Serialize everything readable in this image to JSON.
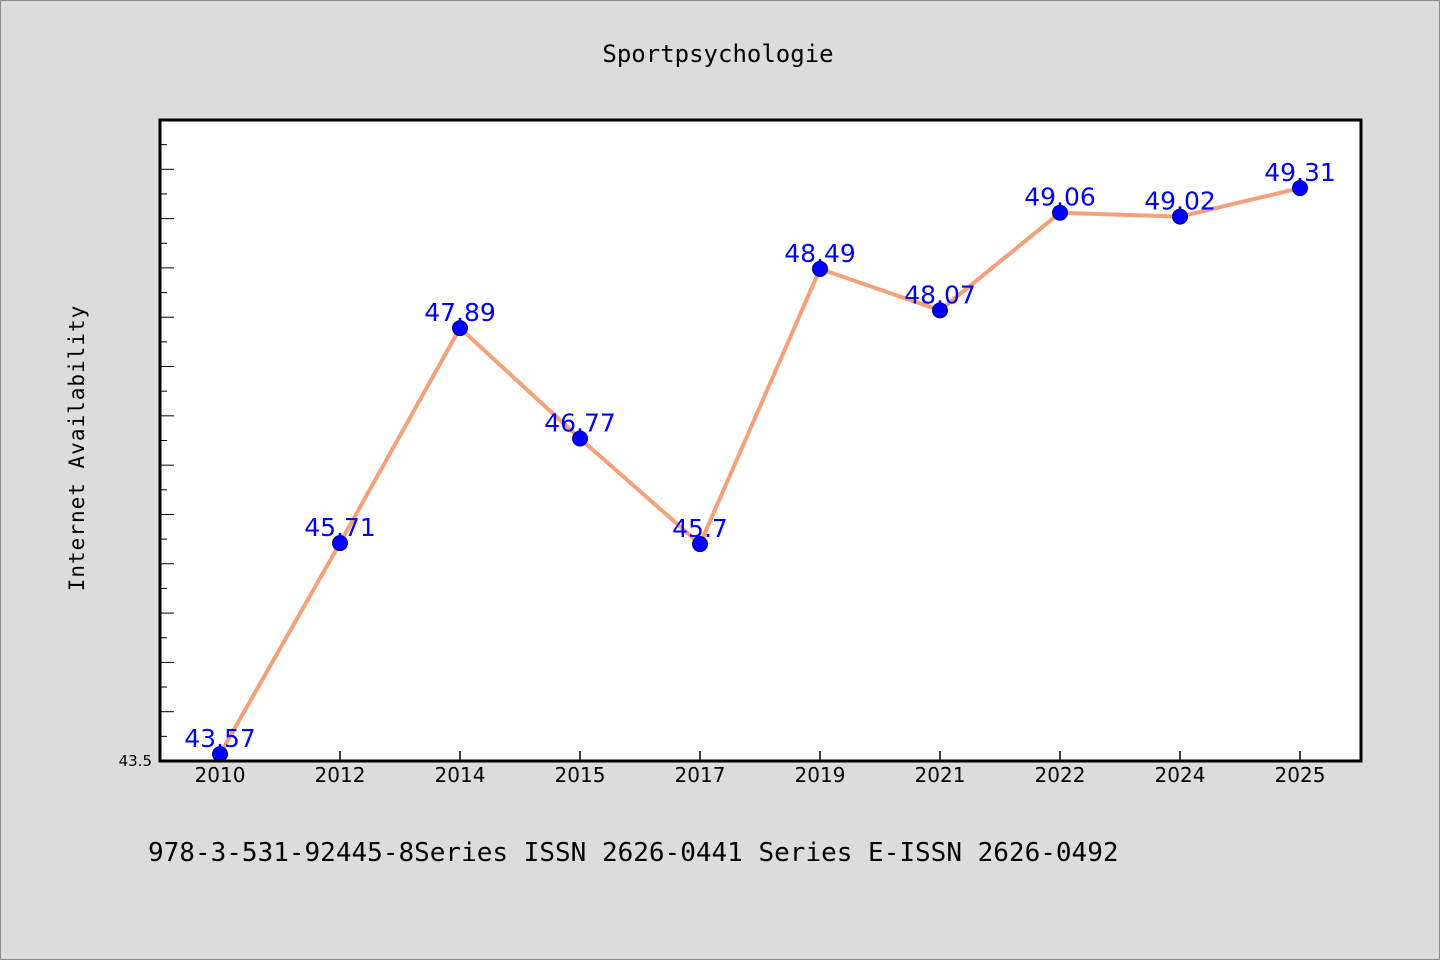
{
  "chart_data": {
    "type": "line",
    "title": "Sportpsychologie",
    "xlabel": "",
    "ylabel": "Internet Availability",
    "categories": [
      "2010",
      "2012",
      "2014",
      "2015",
      "2017",
      "2019",
      "2021",
      "2022",
      "2024",
      "2025"
    ],
    "series": [
      {
        "values": [
          43.57,
          45.71,
          47.89,
          46.77,
          45.7,
          48.49,
          48.07,
          49.06,
          49.02,
          49.31
        ],
        "line_color": "#f4a07a",
        "marker_color": "#0000ff"
      }
    ],
    "data_labels": [
      "43.57",
      "45.71",
      "47.89",
      "46.77",
      "45.7",
      "48.49",
      "48.07",
      "49.06",
      "49.02",
      "49.31"
    ],
    "ylim": [
      43.5,
      50.0
    ],
    "ytick_labels": [
      "43.5"
    ],
    "grid": false,
    "label_color": "#0000ff"
  },
  "footer_text": "978-3-531-92445-8Series ISSN 2626-0441 Series E-ISSN 2626-0492"
}
